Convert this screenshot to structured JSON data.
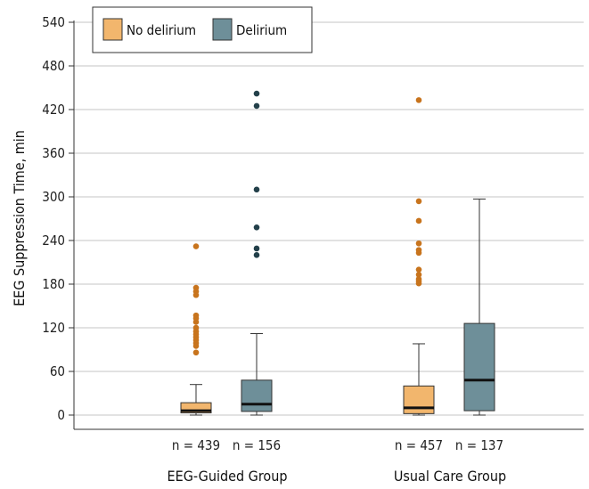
{
  "chart_data": {
    "type": "box",
    "ylabel": "EEG Suppression Time, min",
    "ylim": [
      0,
      540
    ],
    "yticks": [
      0,
      60,
      120,
      180,
      240,
      300,
      360,
      420,
      480,
      540
    ],
    "grid": "horizontal",
    "legend_position": "top-left",
    "series": [
      {
        "name": "No delirium",
        "color": "#f2b66d",
        "outlier_color": "#c8741d"
      },
      {
        "name": "Delirium",
        "color": "#6e8f99",
        "outlier_color": "#23404a"
      }
    ],
    "groups": [
      {
        "label": "EEG-Guided Group",
        "boxes": [
          {
            "series": "No delirium",
            "n_label": "n = 439",
            "whisker_low": 0,
            "q1": 3,
            "median": 6,
            "q3": 17,
            "whisker_high": 42,
            "outliers": [
              232,
              175,
              170,
              165,
              137,
              133,
              128,
              120,
              115,
              111,
              107,
              103,
              99,
              95,
              86
            ]
          },
          {
            "series": "Delirium",
            "n_label": "n = 156",
            "whisker_low": 0,
            "q1": 5,
            "median": 15,
            "q3": 48,
            "whisker_high": 112,
            "outliers": [
              442,
              425,
              310,
              258,
              229,
              220
            ]
          }
        ]
      },
      {
        "label": "Usual Care Group",
        "boxes": [
          {
            "series": "No delirium",
            "n_label": "n = 457",
            "whisker_low": 0,
            "q1": 2,
            "median": 10,
            "q3": 40,
            "whisker_high": 98,
            "outliers": [
              433,
              294,
              267,
              236,
              227,
              223,
              200,
              193,
              187,
              184,
              181
            ]
          },
          {
            "series": "Delirium",
            "n_label": "n = 137",
            "whisker_low": 0,
            "q1": 6,
            "median": 48,
            "q3": 126,
            "whisker_high": 297,
            "outliers": []
          }
        ]
      }
    ]
  }
}
